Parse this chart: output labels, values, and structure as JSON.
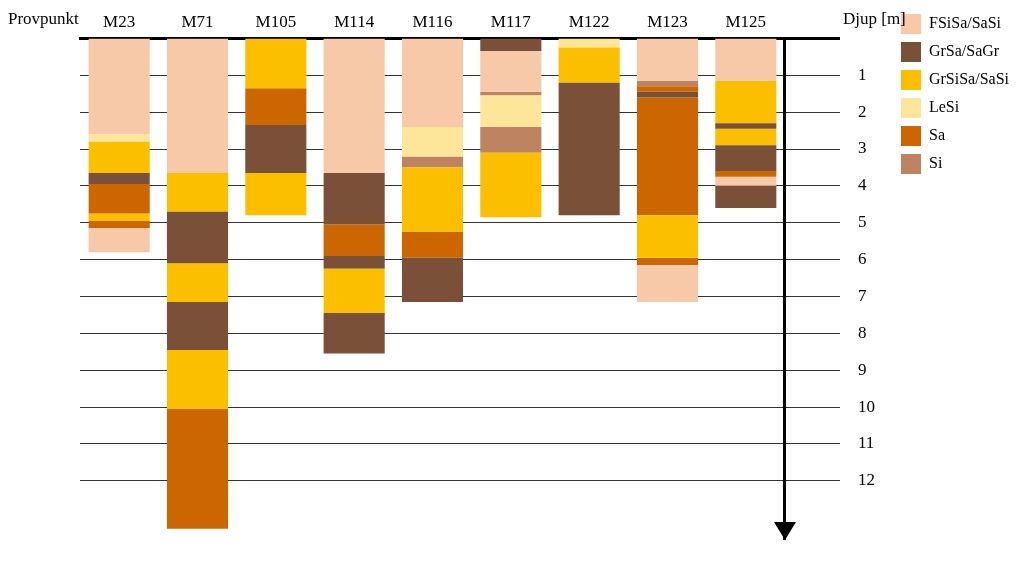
{
  "chart_data": {
    "type": "bar",
    "xlabel": "Provpunkt",
    "ylabel": "Djup [m]",
    "categories": [
      "M23",
      "M71",
      "M105",
      "M114",
      "M116",
      "M117",
      "M122",
      "M123",
      "M125"
    ],
    "series": [
      {
        "name": "FSiSa/SaSi",
        "color": "#f8c9a8",
        "base": [
          0,
          0,
          null,
          0,
          0,
          0.35,
          null,
          0,
          0
        ],
        "values": [
          2.6,
          3.65,
          null,
          3.65,
          2.4,
          1.1,
          null,
          1.15,
          1.15
        ]
      },
      {
        "name": "GrSa/SaGr",
        "color": "#7a5038",
        "base": [
          3.65,
          4.7,
          2.35,
          3.65,
          5.95,
          0,
          1.2,
          1.45,
          2.3
        ],
        "values": [
          0.3,
          1.4,
          1.3,
          1.4,
          1.2,
          0.35,
          3.6,
          0.15,
          0.15
        ]
      },
      {
        "name": "GrSiSa/SaSi",
        "color": "#fbbf00",
        "base": [
          2.8,
          3.65,
          0,
          6.25,
          3.5,
          3.1,
          0.25,
          4.8,
          1.15
        ],
        "values": [
          0.85,
          1.05,
          1.35,
          1.2,
          1.75,
          1.75,
          0.95,
          1.15,
          1.15
        ]
      },
      {
        "name": "LeSi",
        "color": "#fde59a",
        "base": [
          2.6,
          null,
          null,
          null,
          2.4,
          1.55,
          0,
          null,
          null
        ],
        "values": [
          0.2,
          null,
          null,
          null,
          0.8,
          0.85,
          0.25,
          null,
          null
        ]
      },
      {
        "name": "Sa",
        "color": "#cc6600",
        "base": [
          3.95,
          10.05,
          1.35,
          5.05,
          5.25,
          null,
          null,
          1.3,
          3.6
        ],
        "values": [
          0.8,
          3.25,
          1.0,
          0.85,
          0.7,
          null,
          null,
          0.15,
          0.15
        ]
      },
      {
        "name": "Si",
        "color": "#be8462",
        "base": [
          null,
          null,
          null,
          null,
          3.2,
          1.45,
          null,
          1.15,
          null
        ],
        "values": [
          null,
          null,
          null,
          null,
          0.3,
          0.1,
          null,
          0.15,
          null
        ]
      },
      {
        "color": "#f8c9a8",
        "base": [
          5.15,
          null,
          null,
          null,
          null,
          null,
          null,
          6.15,
          3.75
        ],
        "values": [
          0.65,
          null,
          null,
          null,
          null,
          null,
          null,
          1.0,
          0.25
        ]
      },
      {
        "color": "#7a5038",
        "base": [
          null,
          7.15,
          null,
          5.9,
          null,
          null,
          null,
          null,
          2.9
        ],
        "values": [
          null,
          1.3,
          null,
          0.35,
          null,
          null,
          null,
          null,
          0.7
        ]
      },
      {
        "color": "#fbbf00",
        "base": [
          4.75,
          6.1,
          3.65,
          null,
          null,
          null,
          null,
          null,
          2.45
        ],
        "values": [
          0.2,
          1.05,
          1.15,
          null,
          null,
          null,
          null,
          null,
          0.45
        ]
      },
      {
        "color": "#cc6600",
        "base": [
          4.95,
          null,
          null,
          null,
          null,
          null,
          null,
          1.6,
          null
        ],
        "values": [
          0.2,
          null,
          null,
          null,
          null,
          null,
          null,
          3.2,
          null
        ]
      },
      {
        "color": "#be8462",
        "base": [
          null,
          null,
          null,
          null,
          null,
          2.4,
          null,
          null,
          null
        ],
        "values": [
          null,
          null,
          null,
          null,
          null,
          0.7,
          null,
          null,
          null
        ]
      },
      {
        "color": "#7a5038",
        "base": [
          null,
          null,
          null,
          7.45,
          null,
          null,
          null,
          null,
          4.0
        ],
        "values": [
          null,
          null,
          null,
          1.1,
          null,
          null,
          null,
          null,
          0.6
        ]
      },
      {
        "color": "#fbbf00",
        "base": [
          null,
          8.45,
          null,
          null,
          null,
          null,
          null,
          null,
          null
        ],
        "values": [
          null,
          1.6,
          null,
          null,
          null,
          null,
          null,
          null,
          null
        ]
      },
      {
        "color": "#cc6600",
        "base": [
          null,
          null,
          null,
          null,
          null,
          null,
          null,
          5.95,
          null
        ],
        "values": [
          null,
          null,
          null,
          null,
          null,
          null,
          null,
          0.2,
          null
        ]
      }
    ],
    "ylim": [
      13.6,
      0
    ],
    "yticks": [
      1,
      2,
      3,
      4,
      5,
      6,
      7,
      8,
      9,
      10,
      11,
      12
    ],
    "grid": "y",
    "legend": "right"
  }
}
